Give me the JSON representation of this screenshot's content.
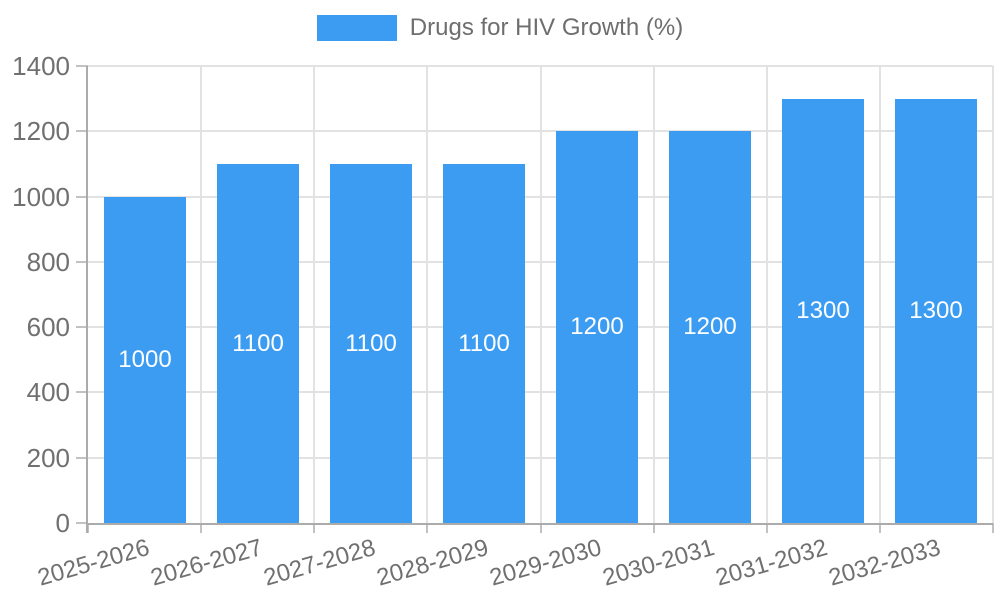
{
  "chart_data": {
    "type": "bar",
    "title": "Drugs for HIV Growth (%)",
    "categories": [
      "2025-2026",
      "2026-2027",
      "2027-2028",
      "2028-2029",
      "2029-2030",
      "2030-2031",
      "2031-2032",
      "2032-2033"
    ],
    "values": [
      1000,
      1100,
      1100,
      1100,
      1200,
      1200,
      1300,
      1300
    ],
    "xlabel": "",
    "ylabel": "",
    "ylim": [
      0,
      1400
    ],
    "yticks": [
      0,
      200,
      400,
      600,
      800,
      1000,
      1200,
      1400
    ],
    "grid": "on",
    "legend_position": "top-center",
    "legend": [
      "Drugs for HIV Growth (%)"
    ],
    "bar_color": "#3b9cf2",
    "value_label_color": "#ffffff",
    "axis_text_color": "#707070",
    "grid_color": "#e2e2e2",
    "axis_line_color": "#ababab",
    "tick_color": "#c2c2c2"
  }
}
